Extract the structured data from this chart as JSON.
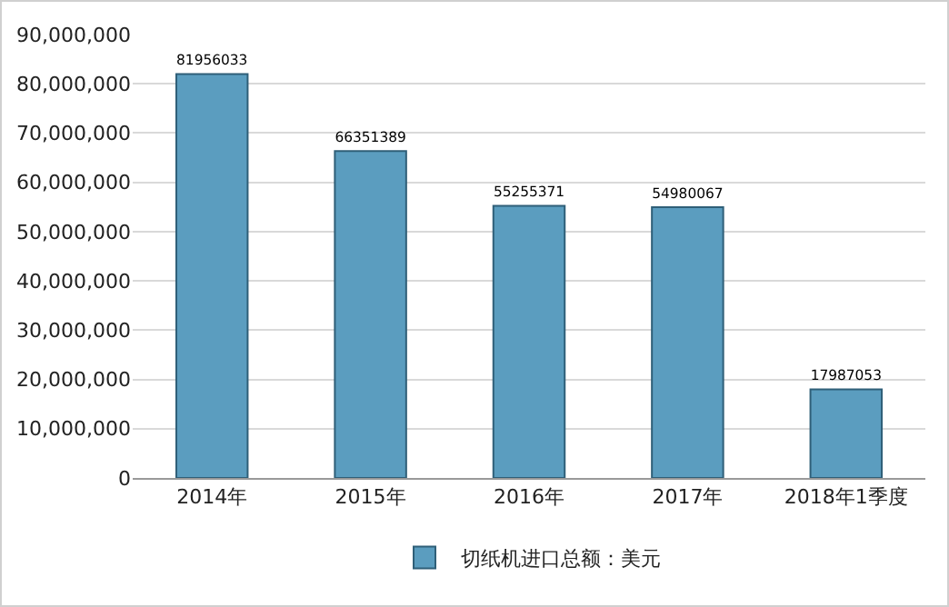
{
  "chart_data": {
    "type": "bar",
    "categories": [
      "2014年",
      "2015年",
      "2016年",
      "2017年",
      "2018年1季度"
    ],
    "series": [
      {
        "name": "切纸机进口总额：美元",
        "color": "#5b9dbf",
        "values": [
          81956033,
          66351389,
          55255371,
          54980067,
          17987053
        ]
      }
    ],
    "data_labels": true,
    "ylim": [
      0,
      90000000
    ],
    "yticks": [
      {
        "value": 0,
        "label": "0"
      },
      {
        "value": 10000000,
        "label": "10,000,000"
      },
      {
        "value": 20000000,
        "label": "20,000,000"
      },
      {
        "value": 30000000,
        "label": "30,000,000"
      },
      {
        "value": 40000000,
        "label": "40,000,000"
      },
      {
        "value": 50000000,
        "label": "50,000,000"
      },
      {
        "value": 60000000,
        "label": "60,000,000"
      },
      {
        "value": 70000000,
        "label": "70,000,000"
      },
      {
        "value": 80000000,
        "label": "80,000,000"
      },
      {
        "value": 90000000,
        "label": "90,000,000"
      }
    ],
    "grid": "y",
    "legend": "bottom"
  }
}
